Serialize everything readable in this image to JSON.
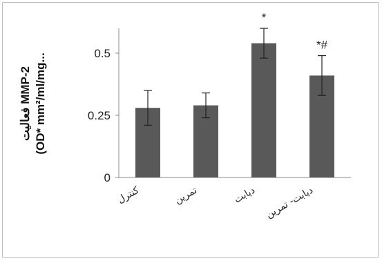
{
  "chart_data": {
    "type": "bar",
    "ylabel_lines": [
      "فعالیت MMP-2",
      "(OD* mm²/ml/mg..."
    ],
    "categories": [
      "کنترل",
      "تمرین",
      "دیابت",
      "دیابت- تمرین"
    ],
    "values": [
      0.28,
      0.29,
      0.54,
      0.41
    ],
    "errors": [
      0.07,
      0.05,
      0.06,
      0.08
    ],
    "annotations": [
      "",
      "",
      "*",
      "*#"
    ],
    "yticks": [
      0,
      0.25,
      0.5
    ],
    "ytick_labels": [
      "0",
      "0.25",
      "0.5"
    ],
    "ylim": [
      0,
      0.6
    ],
    "grid": false,
    "bar_color": "#595959",
    "axis_color": "#888888"
  }
}
